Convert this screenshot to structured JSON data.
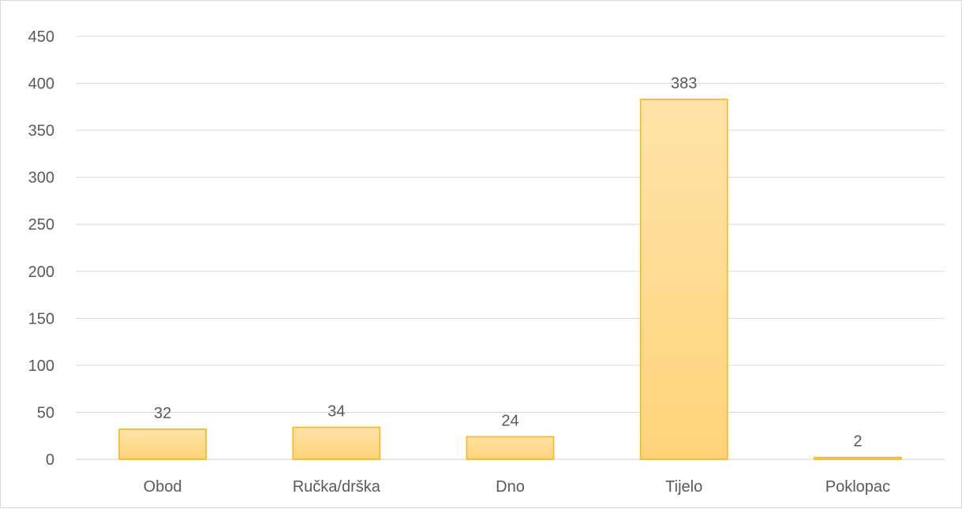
{
  "chart_data": {
    "type": "bar",
    "categories": [
      "Obod",
      "Ručka/drška",
      "Dno",
      "Tijelo",
      "Poklopac"
    ],
    "values": [
      32,
      34,
      24,
      383,
      2
    ],
    "title": "",
    "xlabel": "",
    "ylabel": "",
    "ylim": [
      0,
      450
    ],
    "yticks": [
      0,
      50,
      100,
      150,
      200,
      250,
      300,
      350,
      400,
      450
    ],
    "grid": true,
    "legend": "none",
    "bar_fill_top": "#ffe3a8",
    "bar_fill_bottom": "#ffd37a",
    "bar_stroke": "#f2b81c",
    "show_data_labels": true
  }
}
